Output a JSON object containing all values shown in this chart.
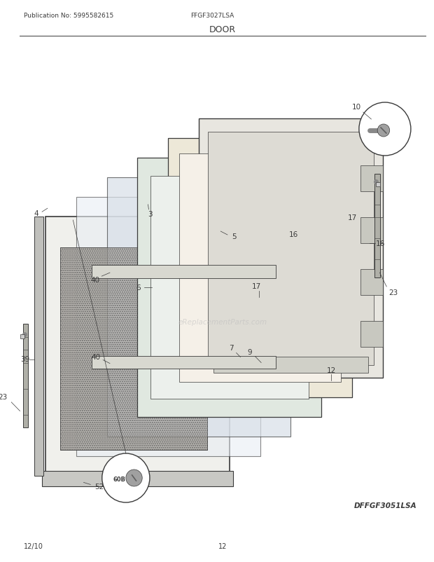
{
  "title": "DOOR",
  "pub_no": "Publication No: 5995582615",
  "model": "FFGF3027LSA",
  "diagram_id": "DFFGF3051LSA",
  "footer_left": "12/10",
  "footer_center": "12",
  "bg_color": "#ffffff",
  "line_color": "#3a3a3a",
  "watermark": "eReplacementParts.com"
}
